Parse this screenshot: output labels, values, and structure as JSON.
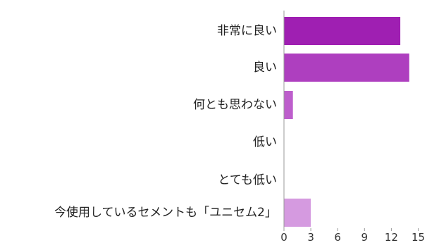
{
  "chart_data": {
    "type": "bar",
    "orientation": "horizontal",
    "categories": [
      "非常に良い",
      "良い",
      "何とも思わない",
      "低い",
      "とても低い",
      "今使用しているセメントも「ユニセム2」"
    ],
    "values": [
      13,
      14,
      1,
      0,
      0,
      3
    ],
    "bar_colors": [
      "#9f1fb2",
      "#ae3fbf",
      "#bd5ecc",
      "#c87ad4",
      "#cf8ad9",
      "#d59ae0"
    ],
    "xlim": [
      0,
      15
    ],
    "xticks": [
      0,
      3,
      6,
      9,
      12,
      15
    ],
    "grid": false,
    "legend": "none",
    "title": "",
    "xlabel": "",
    "ylabel": ""
  }
}
